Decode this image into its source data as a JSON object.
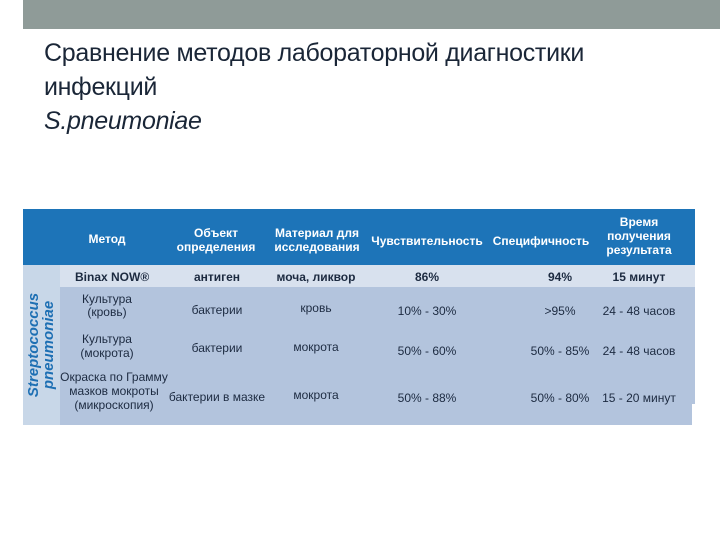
{
  "title": {
    "line1": "Сравнение методов лабораторной диагностики",
    "line2": "инфекций",
    "line3": "S.pneumoniae"
  },
  "table": {
    "side_label_1": "Streptococcus",
    "side_label_2": "pneumoniae",
    "headers": {
      "method": "Метод",
      "object_1": "Объект",
      "object_2": "определения",
      "material_1": "Материал для",
      "material_2": "исследования",
      "sensitivity": "Чувствительность",
      "specificity": "Специфичность",
      "time_1": "Время",
      "time_2": "получения",
      "time_3": "результата"
    },
    "rows": [
      {
        "method_1": "Binax NOW®",
        "object": "антиген",
        "material": "моча, ликвор",
        "sensitivity": "86%",
        "specificity": "94%",
        "time": "15 минут"
      },
      {
        "method_1": "Культура",
        "method_2": "(кровь)",
        "object": "бактерии",
        "material": "кровь",
        "sensitivity": "10% - 30%",
        "specificity": ">95%",
        "time": "24 - 48 часов"
      },
      {
        "method_1": "Культура",
        "method_2": "(мокрота)",
        "object": "бактерии",
        "material": "мокрота",
        "sensitivity": "50% - 60%",
        "specificity": "50% - 85%",
        "time": "24 - 48 часов"
      },
      {
        "method_1": "Окраска по Грамму",
        "method_2": "мазков мокроты",
        "method_3": "(микроскопия)",
        "object": "бактерии в мазке",
        "material": "мокрота",
        "sensitivity": "50% - 88%",
        "specificity": "50% - 80%",
        "time": "15 - 20 минут"
      }
    ]
  }
}
